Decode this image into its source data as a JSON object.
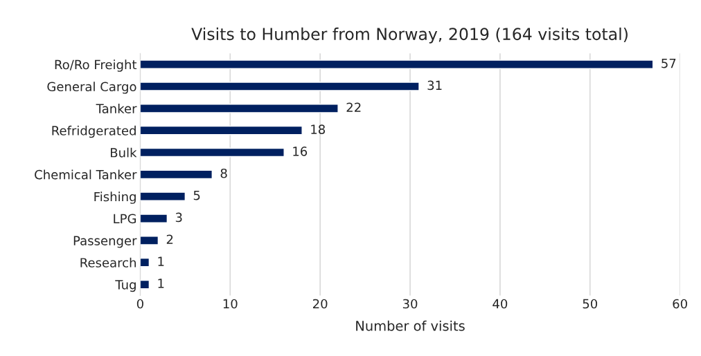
{
  "chart_data": {
    "type": "bar",
    "orientation": "horizontal",
    "title": "Visits to Humber from Norway, 2019 (164 visits total)",
    "xlabel": "Number of visits",
    "categories": [
      "Ro/Ro Freight",
      "General Cargo",
      "Tanker",
      "Refridgerated",
      "Bulk",
      "Chemical Tanker",
      "Fishing",
      "LPG",
      "Passenger",
      "Research",
      "Tug"
    ],
    "values": [
      57,
      31,
      22,
      18,
      16,
      8,
      5,
      3,
      2,
      1,
      1
    ],
    "color": "#002060",
    "xlim": [
      0,
      60
    ],
    "xticks": [
      0,
      10,
      20,
      30,
      40,
      50,
      60
    ],
    "grid": "x",
    "data_labels": true
  }
}
